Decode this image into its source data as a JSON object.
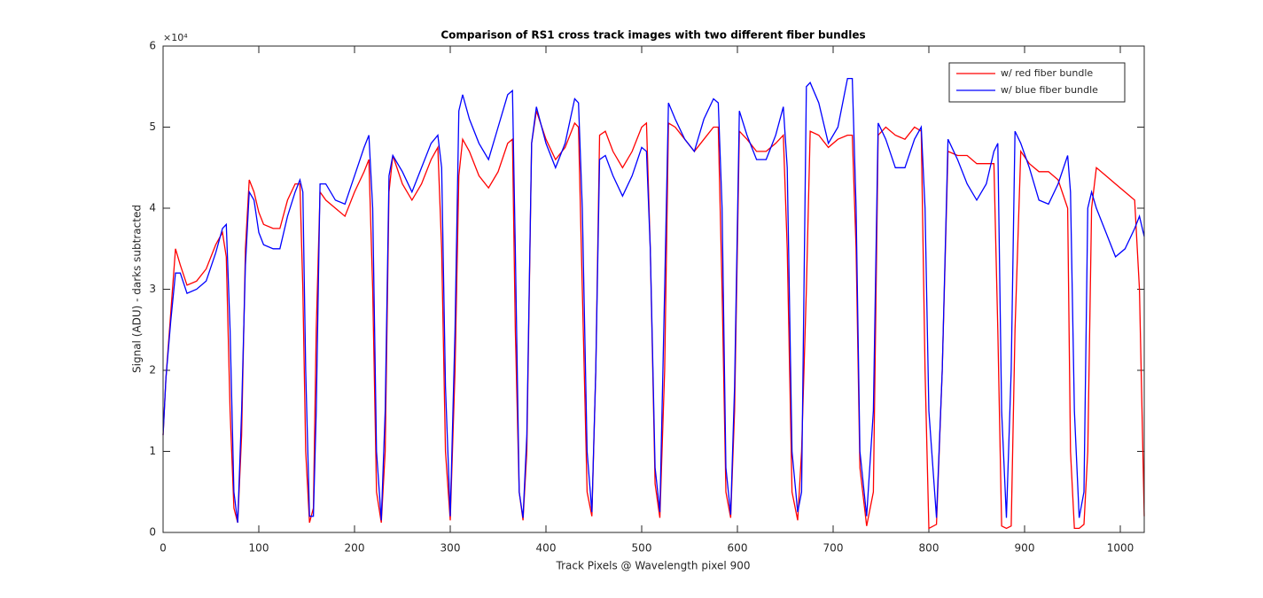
{
  "chart_data": {
    "type": "line",
    "title": "Comparison of RS1 cross track images with two different fiber bundles",
    "xlabel": "Track Pixels @ Wavelength pixel 900",
    "ylabel": "Signal (ADU) - darks subtracted",
    "y_multiplier": "×10⁴",
    "x": [
      0,
      3,
      8,
      13,
      18,
      25,
      35,
      45,
      55,
      62,
      66,
      70,
      74,
      78,
      82,
      86,
      90,
      95,
      100,
      105,
      115,
      122,
      130,
      138,
      143,
      146,
      149,
      153,
      157,
      160,
      164,
      170,
      180,
      190,
      200,
      210,
      215,
      219,
      223,
      228,
      232,
      236,
      240,
      250,
      260,
      270,
      280,
      287,
      291,
      295,
      300,
      305,
      309,
      313,
      320,
      330,
      340,
      350,
      360,
      365,
      368,
      372,
      376,
      380,
      385,
      390,
      400,
      410,
      420,
      430,
      434,
      438,
      443,
      448,
      452,
      456,
      462,
      470,
      480,
      490,
      500,
      505,
      509,
      514,
      519,
      524,
      528,
      535,
      545,
      555,
      565,
      575,
      580,
      584,
      588,
      593,
      597,
      602,
      610,
      620,
      630,
      640,
      648,
      652,
      657,
      663,
      667,
      672,
      676,
      685,
      695,
      705,
      715,
      720,
      724,
      728,
      735,
      742,
      747,
      755,
      765,
      775,
      785,
      792,
      796,
      800,
      808,
      814,
      820,
      830,
      840,
      850,
      860,
      868,
      872,
      876,
      881,
      886,
      890,
      896,
      905,
      915,
      925,
      935,
      945,
      948,
      952,
      957,
      962,
      966,
      970,
      975,
      985,
      995,
      1005,
      1015,
      1020,
      1025
    ],
    "series": [
      {
        "name": "w/ red fiber bundle",
        "color": "#ff0000",
        "values": [
          1.2,
          1.9,
          2.7,
          3.5,
          3.3,
          3.05,
          3.1,
          3.25,
          3.55,
          3.7,
          3.4,
          1.5,
          0.3,
          0.12,
          1.2,
          3.5,
          4.35,
          4.2,
          3.95,
          3.8,
          3.75,
          3.75,
          4.1,
          4.3,
          4.3,
          3.0,
          1.0,
          0.12,
          0.3,
          2.5,
          4.2,
          4.1,
          4.0,
          3.9,
          4.2,
          4.45,
          4.6,
          3.0,
          0.5,
          0.12,
          1.0,
          4.2,
          4.65,
          4.3,
          4.1,
          4.3,
          4.6,
          4.75,
          3.5,
          1.0,
          0.15,
          2.0,
          4.4,
          4.85,
          4.7,
          4.4,
          4.25,
          4.45,
          4.8,
          4.85,
          2.5,
          0.5,
          0.15,
          1.0,
          4.8,
          5.2,
          4.85,
          4.6,
          4.75,
          5.05,
          5.0,
          3.0,
          0.5,
          0.2,
          2.0,
          4.9,
          4.95,
          4.7,
          4.5,
          4.7,
          5.0,
          5.05,
          3.5,
          0.6,
          0.18,
          2.0,
          5.05,
          5.0,
          4.85,
          4.7,
          4.85,
          5.0,
          5.0,
          3.0,
          0.5,
          0.18,
          1.5,
          4.95,
          4.85,
          4.7,
          4.7,
          4.8,
          4.9,
          3.5,
          0.5,
          0.15,
          1.0,
          3.0,
          4.95,
          4.9,
          4.75,
          4.85,
          4.9,
          4.9,
          3.5,
          0.8,
          0.08,
          0.5,
          4.9,
          5.0,
          4.9,
          4.85,
          5.0,
          4.95,
          2.0,
          0.05,
          0.1,
          2.0,
          4.7,
          4.65,
          4.65,
          4.55,
          4.55,
          4.55,
          2.5,
          0.08,
          0.05,
          0.08,
          2.5,
          4.7,
          4.55,
          4.45,
          4.45,
          4.35,
          4.0,
          1.0,
          0.05,
          0.05,
          0.1,
          1.0,
          4.0,
          4.5,
          4.4,
          4.3,
          4.2,
          4.1,
          3.0,
          0.2
        ]
      },
      {
        "name": "w/ blue fiber bundle",
        "color": "#0000ff",
        "values": [
          1.2,
          1.9,
          2.6,
          3.2,
          3.2,
          2.95,
          3.0,
          3.1,
          3.45,
          3.75,
          3.8,
          2.5,
          0.5,
          0.12,
          1.5,
          3.3,
          4.2,
          4.1,
          3.7,
          3.55,
          3.5,
          3.5,
          3.9,
          4.2,
          4.35,
          4.2,
          2.0,
          0.2,
          0.2,
          1.5,
          4.3,
          4.3,
          4.1,
          4.05,
          4.4,
          4.75,
          4.9,
          4.0,
          1.0,
          0.15,
          1.5,
          4.4,
          4.65,
          4.45,
          4.2,
          4.5,
          4.8,
          4.9,
          4.5,
          1.8,
          0.2,
          2.5,
          5.2,
          5.4,
          5.1,
          4.8,
          4.6,
          5.0,
          5.4,
          5.45,
          3.5,
          0.5,
          0.18,
          1.2,
          4.8,
          5.25,
          4.8,
          4.5,
          4.8,
          5.35,
          5.3,
          4.0,
          1.0,
          0.25,
          2.0,
          4.6,
          4.65,
          4.4,
          4.15,
          4.4,
          4.75,
          4.7,
          3.5,
          0.8,
          0.25,
          3.0,
          5.3,
          5.1,
          4.85,
          4.7,
          5.1,
          5.35,
          5.3,
          4.0,
          0.8,
          0.22,
          1.8,
          5.2,
          4.9,
          4.6,
          4.6,
          4.9,
          5.25,
          4.5,
          1.0,
          0.25,
          0.5,
          5.5,
          5.55,
          5.3,
          4.8,
          5.0,
          5.6,
          5.6,
          4.0,
          1.0,
          0.2,
          1.5,
          5.05,
          4.85,
          4.5,
          4.5,
          4.85,
          5.0,
          4.0,
          1.5,
          0.18,
          2.0,
          4.85,
          4.6,
          4.3,
          4.1,
          4.3,
          4.7,
          4.8,
          1.5,
          0.18,
          2.0,
          4.95,
          4.8,
          4.5,
          4.1,
          4.05,
          4.3,
          4.65,
          4.2,
          1.5,
          0.18,
          0.5,
          4.0,
          4.2,
          4.0,
          3.7,
          3.4,
          3.5,
          3.75,
          3.9,
          3.65
        ]
      }
    ],
    "xlim": [
      0,
      1025
    ],
    "ylim": [
      0,
      6
    ],
    "xticks": [
      0,
      100,
      200,
      300,
      400,
      500,
      600,
      700,
      800,
      900,
      1000
    ],
    "yticks": [
      0,
      1,
      2,
      3,
      4,
      5,
      6
    ],
    "legend": "top-right"
  }
}
